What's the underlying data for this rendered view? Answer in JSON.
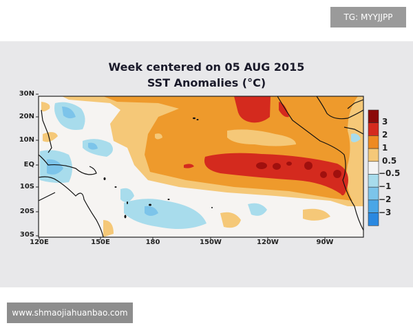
{
  "title_line1": "Week centered on 05 AUG 2015",
  "title_line2": "SST Anomalies (°C)",
  "lat_labels": [
    "30N",
    "20N",
    "10N",
    "EQ",
    "10S",
    "20S",
    "30S"
  ],
  "lon_labels": [
    "120E",
    "150E",
    "180",
    "150W",
    "120W",
    "90W"
  ],
  "colorbar": {
    "labels": [
      "3",
      "2",
      "1",
      "0.5",
      "-0.5",
      "-1",
      "-2",
      "-3"
    ],
    "colors": [
      "#8b0a0a",
      "#d42a1e",
      "#ee8a22",
      "#f5c878",
      "#f4f4f4",
      "#a8dcec",
      "#7cc4ea",
      "#4aa6e6",
      "#2a88e0"
    ]
  },
  "watermark_top": "TG: MYYJJPP",
  "watermark_bottom": "www.shmaojiahuanbao.com"
}
